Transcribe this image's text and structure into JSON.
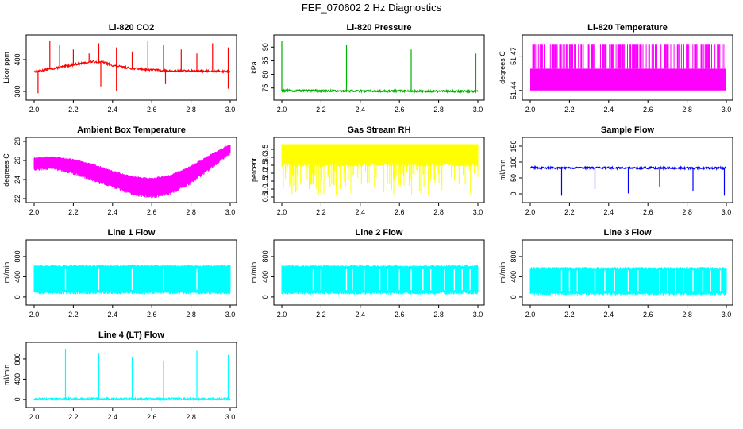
{
  "figure": {
    "title": "FEF_070602  2 Hz Diagnostics"
  },
  "chart_data": [
    {
      "type": "line",
      "title": "Li-820 CO2",
      "ylabel": "Licor ppm",
      "color": "#ff0000",
      "xlim": [
        2.0,
        3.0
      ],
      "ylim": [
        285,
        465
      ],
      "x_ticks": [
        "2.0",
        "2.2",
        "2.4",
        "2.6",
        "2.8",
        "3.0"
      ],
      "y_ticks": [
        {
          "value": 300,
          "label": "300"
        },
        {
          "value": 400,
          "label": "400"
        }
      ],
      "series": [
        {
          "x": [
            2.0,
            2.1,
            2.2,
            2.3,
            2.35,
            2.4,
            2.5,
            2.6,
            2.7,
            2.8,
            2.9,
            3.0
          ],
          "y": [
            362,
            372,
            384,
            394,
            392,
            382,
            372,
            368,
            364,
            364,
            364,
            363
          ]
        }
      ],
      "spikes_up": [
        2.08,
        2.13,
        2.2,
        2.28,
        2.33,
        2.42,
        2.5,
        2.58,
        2.66,
        2.75,
        2.83,
        2.91,
        2.99
      ],
      "spikes_down": [
        2.02,
        2.34,
        2.42,
        2.67,
        2.99
      ]
    },
    {
      "type": "line",
      "title": "Li-820 Pressure",
      "ylabel": "kPa",
      "color": "#00b000",
      "xlim": [
        2.0,
        3.0
      ],
      "ylim": [
        72,
        93
      ],
      "x_ticks": [
        "2.0",
        "2.2",
        "2.4",
        "2.6",
        "2.8",
        "3.0"
      ],
      "y_ticks": [
        {
          "value": 75,
          "label": "75"
        },
        {
          "value": 80,
          "label": "80"
        },
        {
          "value": 85,
          "label": "85"
        },
        {
          "value": 90,
          "label": "90"
        }
      ],
      "series": [
        {
          "x": [
            2.0,
            3.0
          ],
          "y": [
            74.0,
            73.8
          ]
        }
      ],
      "spikes_up": [
        2.0,
        2.33,
        2.66,
        2.99
      ]
    },
    {
      "type": "area",
      "title": "Li-820 Temperature",
      "ylabel": "degrees C",
      "color": "#ff00ff",
      "xlim": [
        2.0,
        3.0
      ],
      "ylim": [
        51.435,
        51.485
      ],
      "x_ticks": [
        "2.0",
        "2.2",
        "2.4",
        "2.6",
        "2.8",
        "3.0"
      ],
      "y_ticks": [
        {
          "value": 51.44,
          "label": "51.44"
        },
        {
          "value": 51.47,
          "label": "51.47"
        }
      ],
      "series": [
        {
          "x": [
            2.0,
            3.0
          ],
          "y": [
            51.459,
            51.459
          ]
        }
      ],
      "band_min": 51.44,
      "band_max": 51.48
    },
    {
      "type": "area",
      "title": "Ambient Box Temperature",
      "ylabel": "degrees C",
      "color": "#ff00ff",
      "xlim": [
        2.0,
        3.0
      ],
      "ylim": [
        22,
        28
      ],
      "x_ticks": [
        "2.0",
        "2.2",
        "2.4",
        "2.6",
        "2.8",
        "3.0"
      ],
      "y_ticks": [
        {
          "value": 22,
          "label": "22"
        },
        {
          "value": 24,
          "label": "24"
        },
        {
          "value": 26,
          "label": "26"
        },
        {
          "value": 28,
          "label": "28"
        }
      ],
      "series": [
        {
          "name": "upper",
          "x": [
            2.0,
            2.1,
            2.2,
            2.3,
            2.4,
            2.5,
            2.6,
            2.7,
            2.8,
            2.9,
            3.0
          ],
          "y": [
            26.2,
            26.3,
            26.0,
            25.5,
            24.8,
            24.2,
            24.0,
            24.4,
            25.3,
            26.5,
            27.6
          ]
        },
        {
          "name": "lower",
          "x": [
            2.0,
            2.1,
            2.2,
            2.3,
            2.4,
            2.5,
            2.6,
            2.7,
            2.8,
            2.9,
            3.0
          ],
          "y": [
            25.2,
            25.3,
            24.8,
            24.1,
            23.4,
            22.6,
            22.3,
            22.7,
            23.8,
            25.3,
            26.9
          ]
        }
      ]
    },
    {
      "type": "area",
      "title": "Gas Stream RH",
      "ylabel": "percent",
      "color": "#ffff00",
      "xlim": [
        2.0,
        3.0
      ],
      "ylim": [
        0.4,
        4.0
      ],
      "x_ticks": [
        "2.0",
        "2.2",
        "2.4",
        "2.6",
        "2.8",
        "3.0"
      ],
      "y_ticks": [
        {
          "value": 0.5,
          "label": "0.5"
        },
        {
          "value": 1.0,
          "label": "1.0"
        },
        {
          "value": 1.5,
          "label": "1.5"
        },
        {
          "value": 2.0,
          "label": "2.0"
        },
        {
          "value": 2.5,
          "label": "2.5"
        },
        {
          "value": 3.0,
          "label": "3.0"
        },
        {
          "value": 3.5,
          "label": "3.5"
        }
      ],
      "series": [
        {
          "name": "upper",
          "x": [
            2.0,
            3.0
          ],
          "y": [
            3.8,
            3.8
          ]
        },
        {
          "name": "lower",
          "x": [
            2.0,
            3.0
          ],
          "y": [
            2.6,
            2.6
          ]
        }
      ],
      "band_min": 0.6,
      "band_max": 3.8
    },
    {
      "type": "line",
      "title": "Sample Flow",
      "ylabel": "ml/min",
      "color": "#0000ff",
      "xlim": [
        2.0,
        3.0
      ],
      "ylim": [
        -15,
        165
      ],
      "x_ticks": [
        "2.0",
        "2.2",
        "2.4",
        "2.6",
        "2.8",
        "3.0"
      ],
      "y_ticks": [
        {
          "value": 0,
          "label": "0"
        },
        {
          "value": 50,
          "label": "50"
        },
        {
          "value": 100,
          "label": "100"
        },
        {
          "value": 150,
          "label": "150"
        }
      ],
      "series": [
        {
          "x": [
            2.0,
            3.0
          ],
          "y": [
            82,
            81
          ]
        }
      ],
      "spikes_down": [
        2.16,
        2.33,
        2.5,
        2.66,
        2.83,
        2.99
      ]
    },
    {
      "type": "area",
      "title": "Line 1 Flow",
      "ylabel": "ml/min",
      "color": "#00ffff",
      "xlim": [
        2.0,
        3.0
      ],
      "ylim": [
        -80,
        1050
      ],
      "x_ticks": [
        "2.0",
        "2.2",
        "2.4",
        "2.6",
        "2.8",
        "3.0"
      ],
      "y_ticks": [
        {
          "value": 0,
          "label": "0"
        },
        {
          "value": 400,
          "label": "400"
        },
        {
          "value": 800,
          "label": "800"
        }
      ],
      "series": [
        {
          "name": "upper",
          "x": [
            2.0,
            3.0
          ],
          "y": [
            600,
            600
          ]
        },
        {
          "name": "lower",
          "x": [
            2.0,
            3.0
          ],
          "y": [
            110,
            110
          ]
        }
      ],
      "gaps": [
        2.16,
        2.33,
        2.5,
        2.66,
        2.83
      ]
    },
    {
      "type": "area",
      "title": "Line 2 Flow",
      "ylabel": "ml/min",
      "color": "#00ffff",
      "xlim": [
        2.0,
        3.0
      ],
      "ylim": [
        -80,
        1050
      ],
      "x_ticks": [
        "2.0",
        "2.2",
        "2.4",
        "2.6",
        "2.8",
        "3.0"
      ],
      "y_ticks": [
        {
          "value": 0,
          "label": "0"
        },
        {
          "value": 400,
          "label": "400"
        },
        {
          "value": 800,
          "label": "800"
        }
      ],
      "series": [
        {
          "name": "upper",
          "x": [
            2.0,
            3.0
          ],
          "y": [
            595,
            595
          ]
        },
        {
          "name": "lower",
          "x": [
            2.0,
            3.0
          ],
          "y": [
            105,
            105
          ]
        }
      ],
      "gaps": [
        2.16,
        2.2,
        2.33,
        2.36,
        2.42,
        2.5,
        2.54,
        2.6,
        2.66,
        2.72,
        2.76,
        2.83,
        2.88,
        2.92,
        2.96
      ]
    },
    {
      "type": "area",
      "title": "Line 3 Flow",
      "ylabel": "ml/min",
      "color": "#00ffff",
      "xlim": [
        2.0,
        3.0
      ],
      "ylim": [
        -80,
        1050
      ],
      "x_ticks": [
        "2.0",
        "2.2",
        "2.4",
        "2.6",
        "2.8",
        "3.0"
      ],
      "y_ticks": [
        {
          "value": 0,
          "label": "0"
        },
        {
          "value": 400,
          "label": "400"
        },
        {
          "value": 800,
          "label": "800"
        }
      ],
      "series": [
        {
          "name": "upper",
          "x": [
            2.0,
            3.0
          ],
          "y": [
            560,
            560
          ]
        },
        {
          "name": "lower",
          "x": [
            2.0,
            3.0
          ],
          "y": [
            90,
            90
          ]
        }
      ],
      "gaps": [
        2.16,
        2.2,
        2.24,
        2.33,
        2.38,
        2.43,
        2.5,
        2.55,
        2.66,
        2.7,
        2.74,
        2.78,
        2.83,
        2.88,
        2.92,
        2.97
      ]
    },
    {
      "type": "line",
      "title": "Line 4 (LT) Flow",
      "ylabel": "ml/min",
      "color": "#00ffff",
      "xlim": [
        2.0,
        3.0
      ],
      "ylim": [
        -80,
        1050
      ],
      "x_ticks": [
        "2.0",
        "2.2",
        "2.4",
        "2.6",
        "2.8",
        "3.0"
      ],
      "y_ticks": [
        {
          "value": 0,
          "label": "0"
        },
        {
          "value": 400,
          "label": "400"
        },
        {
          "value": 800,
          "label": "800"
        }
      ],
      "series": [
        {
          "x": [
            2.0,
            3.0
          ],
          "y": [
            12,
            12
          ]
        }
      ],
      "spikes_up": [
        2.16,
        2.33,
        2.5,
        2.66,
        2.83,
        2.99
      ]
    }
  ]
}
